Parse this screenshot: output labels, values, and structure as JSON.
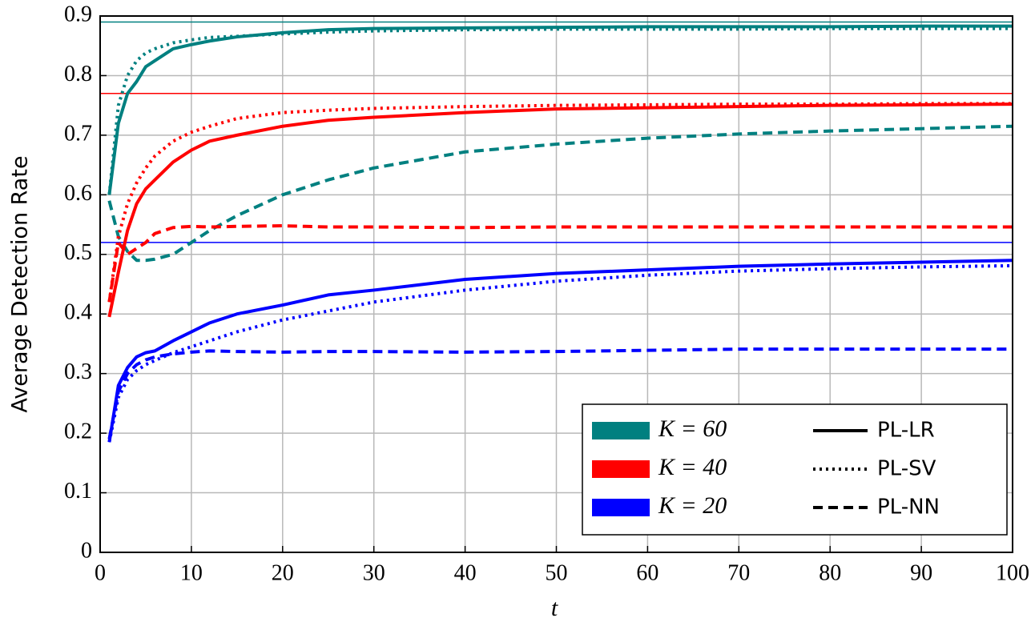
{
  "chart_data": {
    "type": "line",
    "x_label": "t",
    "y_label": "Average Detection Rate",
    "x": [
      1,
      2,
      3,
      4,
      5,
      6,
      8,
      10,
      12,
      15,
      20,
      25,
      30,
      40,
      50,
      60,
      70,
      80,
      90,
      100
    ],
    "xlim": [
      0,
      100
    ],
    "xticks": [
      0,
      10,
      20,
      30,
      40,
      50,
      60,
      70,
      80,
      90,
      100
    ],
    "ylim": [
      0,
      0.9
    ],
    "yticks": [
      0,
      0.1,
      0.2,
      0.3,
      0.4,
      0.5,
      0.6,
      0.7,
      0.8,
      0.9
    ],
    "grid": true,
    "legend_position": "lower right",
    "reference_lines": [
      {
        "value": 0.89,
        "color": "#008080"
      },
      {
        "value": 0.77,
        "color": "#ff0000"
      },
      {
        "value": 0.52,
        "color": "#0000ff"
      }
    ],
    "legend": {
      "colors": [
        {
          "label": "K = 60",
          "color": "#008080"
        },
        {
          "label": "K = 40",
          "color": "#ff0000"
        },
        {
          "label": "K = 20",
          "color": "#0000ff"
        }
      ],
      "styles": [
        {
          "label": "PL-LR",
          "dash": "solid"
        },
        {
          "label": "PL-SV",
          "dash": "dotted"
        },
        {
          "label": "PL-NN",
          "dash": "dashed"
        }
      ]
    },
    "series": [
      {
        "color": "#008080",
        "dash": "solid",
        "values": [
          0.6,
          0.72,
          0.77,
          0.79,
          0.815,
          0.825,
          0.845,
          0.852,
          0.858,
          0.865,
          0.872,
          0.877,
          0.879,
          0.88,
          0.881,
          0.882,
          0.882,
          0.882,
          0.883,
          0.883
        ]
      },
      {
        "color": "#008080",
        "dash": "dotted",
        "values": [
          0.6,
          0.75,
          0.8,
          0.825,
          0.838,
          0.845,
          0.855,
          0.86,
          0.864,
          0.866,
          0.87,
          0.873,
          0.875,
          0.877,
          0.878,
          0.878,
          0.878,
          0.879,
          0.879,
          0.879
        ]
      },
      {
        "color": "#008080",
        "dash": "dashed",
        "values": [
          0.59,
          0.53,
          0.505,
          0.49,
          0.49,
          0.492,
          0.5,
          0.52,
          0.54,
          0.565,
          0.6,
          0.625,
          0.645,
          0.672,
          0.685,
          0.695,
          0.702,
          0.707,
          0.711,
          0.715
        ]
      },
      {
        "color": "#ff0000",
        "dash": "solid",
        "values": [
          0.395,
          0.47,
          0.54,
          0.585,
          0.61,
          0.625,
          0.655,
          0.675,
          0.69,
          0.7,
          0.715,
          0.725,
          0.73,
          0.738,
          0.744,
          0.746,
          0.748,
          0.75,
          0.751,
          0.752
        ]
      },
      {
        "color": "#ff0000",
        "dash": "dotted",
        "values": [
          0.42,
          0.53,
          0.585,
          0.62,
          0.645,
          0.665,
          0.69,
          0.705,
          0.715,
          0.728,
          0.738,
          0.742,
          0.745,
          0.748,
          0.75,
          0.751,
          0.752,
          0.752,
          0.753,
          0.753
        ]
      },
      {
        "color": "#ff0000",
        "dash": "dashed",
        "values": [
          0.42,
          0.52,
          0.5,
          0.51,
          0.52,
          0.535,
          0.545,
          0.547,
          0.546,
          0.547,
          0.548,
          0.546,
          0.546,
          0.545,
          0.546,
          0.546,
          0.546,
          0.546,
          0.546,
          0.546
        ]
      },
      {
        "color": "#0000ff",
        "dash": "solid",
        "values": [
          0.185,
          0.28,
          0.31,
          0.328,
          0.335,
          0.338,
          0.355,
          0.37,
          0.385,
          0.4,
          0.415,
          0.432,
          0.44,
          0.458,
          0.468,
          0.474,
          0.48,
          0.484,
          0.487,
          0.49
        ]
      },
      {
        "color": "#0000ff",
        "dash": "dotted",
        "values": [
          0.185,
          0.26,
          0.29,
          0.305,
          0.315,
          0.322,
          0.335,
          0.345,
          0.355,
          0.37,
          0.39,
          0.405,
          0.42,
          0.44,
          0.455,
          0.465,
          0.472,
          0.476,
          0.479,
          0.481
        ]
      },
      {
        "color": "#0000ff",
        "dash": "dashed",
        "values": [
          0.19,
          0.27,
          0.3,
          0.315,
          0.323,
          0.328,
          0.333,
          0.336,
          0.338,
          0.337,
          0.336,
          0.337,
          0.337,
          0.336,
          0.337,
          0.339,
          0.341,
          0.341,
          0.341,
          0.341
        ]
      }
    ]
  }
}
